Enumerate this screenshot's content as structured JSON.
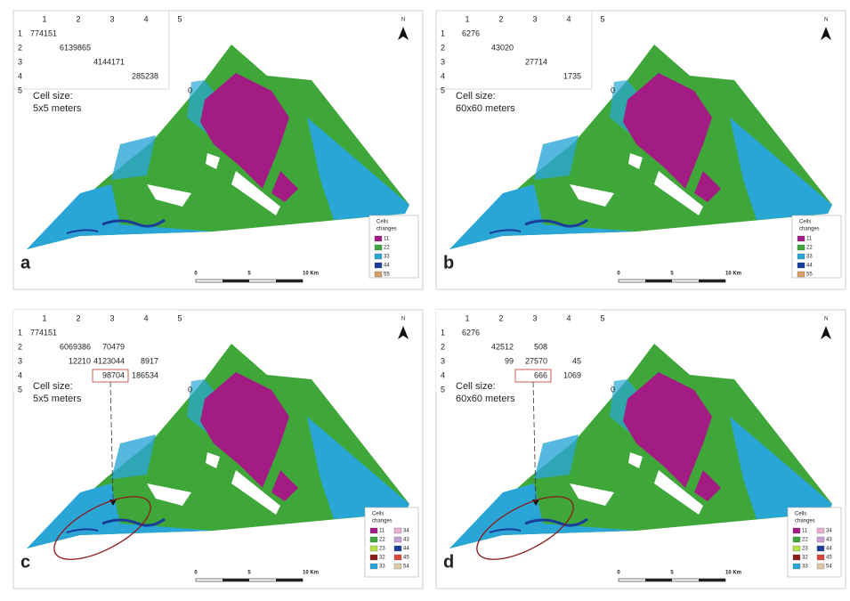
{
  "panels": [
    {
      "label": "a",
      "matrix": {
        "col_headers": [
          "1",
          "2",
          "3",
          "4",
          "5"
        ],
        "rows": [
          {
            "header": "1",
            "cells": [
              "774151",
              null,
              null,
              null,
              null
            ]
          },
          {
            "header": "2",
            "cells": [
              null,
              "6139865",
              null,
              null,
              null
            ]
          },
          {
            "header": "3",
            "cells": [
              null,
              null,
              "4144171",
              null,
              null
            ]
          },
          {
            "header": "4",
            "cells": [
              null,
              null,
              null,
              "285238",
              null
            ]
          },
          {
            "header": "5",
            "cells": [
              null,
              null,
              null,
              null,
              "0"
            ]
          }
        ]
      },
      "cell_size": [
        "Cell size:",
        "5x5 meters"
      ],
      "legend": {
        "title": [
          "Cells",
          "changes"
        ],
        "items": [
          {
            "label": "11",
            "color": "#a31c84"
          },
          {
            "label": "22",
            "color": "#3fa63a"
          },
          {
            "label": "33",
            "color": "#2aa6d6"
          },
          {
            "label": "44",
            "color": "#1a3c9a"
          },
          {
            "label": "55",
            "color": "#d9a066"
          }
        ]
      },
      "scale": [
        "0",
        "5",
        "10 Km"
      ],
      "north": "N"
    },
    {
      "label": "b",
      "matrix": {
        "col_headers": [
          "1",
          "2",
          "3",
          "4",
          "5"
        ],
        "rows": [
          {
            "header": "1",
            "cells": [
              "6276",
              null,
              null,
              null,
              null
            ]
          },
          {
            "header": "2",
            "cells": [
              null,
              "43020",
              null,
              null,
              null
            ]
          },
          {
            "header": "3",
            "cells": [
              null,
              null,
              "27714",
              null,
              null
            ]
          },
          {
            "header": "4",
            "cells": [
              null,
              null,
              null,
              "1735",
              null
            ]
          },
          {
            "header": "5",
            "cells": [
              null,
              null,
              null,
              null,
              "0"
            ]
          }
        ]
      },
      "cell_size": [
        "Cell size:",
        "60x60 meters"
      ],
      "legend": {
        "title": [
          "Cells",
          "changes"
        ],
        "items": [
          {
            "label": "11",
            "color": "#a31c84"
          },
          {
            "label": "22",
            "color": "#3fa63a"
          },
          {
            "label": "33",
            "color": "#2aa6d6"
          },
          {
            "label": "44",
            "color": "#1a3c9a"
          },
          {
            "label": "55",
            "color": "#d9a066"
          }
        ]
      },
      "scale": [
        "0",
        "5",
        "10 Km"
      ],
      "north": "N"
    },
    {
      "label": "c",
      "matrix": {
        "col_headers": [
          "1",
          "2",
          "3",
          "4",
          "5"
        ],
        "rows": [
          {
            "header": "1",
            "cells": [
              "774151",
              null,
              null,
              null,
              null
            ]
          },
          {
            "header": "2",
            "cells": [
              null,
              "6069386",
              "70479",
              null,
              null
            ]
          },
          {
            "header": "3",
            "cells": [
              null,
              "12210",
              "4123044",
              "8917",
              null
            ]
          },
          {
            "header": "4",
            "cells": [
              null,
              null,
              "98704",
              "186534",
              null
            ]
          },
          {
            "header": "5",
            "cells": [
              null,
              null,
              null,
              null,
              "0"
            ]
          }
        ]
      },
      "cell_size": [
        "Cell size:",
        "5x5 meters"
      ],
      "legend": {
        "title": [
          "Cells",
          "changes"
        ],
        "items": [
          {
            "label": "11",
            "color": "#a31c84"
          },
          {
            "label": "22",
            "color": "#3fa63a"
          },
          {
            "label": "23",
            "color": "#b7e34a"
          },
          {
            "label": "32",
            "color": "#8b1a1a"
          },
          {
            "label": "33",
            "color": "#2aa6d6"
          },
          {
            "label": "34",
            "color": "#e8b0d0"
          },
          {
            "label": "43",
            "color": "#c9a0d8"
          },
          {
            "label": "44",
            "color": "#1a3c9a"
          },
          {
            "label": "45",
            "color": "#d9463a"
          },
          {
            "label": "54",
            "color": "#e0c9a6"
          }
        ]
      },
      "scale": [
        "0",
        "5",
        "10 Km"
      ],
      "north": "N"
    },
    {
      "label": "d",
      "matrix": {
        "col_headers": [
          "1",
          "2",
          "3",
          "4",
          "5"
        ],
        "rows": [
          {
            "header": "1",
            "cells": [
              "6276",
              null,
              null,
              null,
              null
            ]
          },
          {
            "header": "2",
            "cells": [
              null,
              "42512",
              "508",
              null,
              null
            ]
          },
          {
            "header": "3",
            "cells": [
              null,
              "99",
              "27570",
              "45",
              null
            ]
          },
          {
            "header": "4",
            "cells": [
              null,
              null,
              "666",
              "1069",
              null
            ]
          },
          {
            "header": "5",
            "cells": [
              null,
              null,
              null,
              null,
              "0"
            ]
          }
        ]
      },
      "cell_size": [
        "Cell size:",
        "60x60 meters"
      ],
      "legend": {
        "title": [
          "Cells",
          "changes"
        ],
        "items": [
          {
            "label": "11",
            "color": "#a31c84"
          },
          {
            "label": "22",
            "color": "#3fa63a"
          },
          {
            "label": "23",
            "color": "#b7e34a"
          },
          {
            "label": "32",
            "color": "#8b1a1a"
          },
          {
            "label": "33",
            "color": "#2aa6d6"
          },
          {
            "label": "34",
            "color": "#e8b0d0"
          },
          {
            "label": "43",
            "color": "#c9a0d8"
          },
          {
            "label": "44",
            "color": "#1a3c9a"
          },
          {
            "label": "45",
            "color": "#d9463a"
          },
          {
            "label": "54",
            "color": "#e0c9a6"
          }
        ]
      },
      "scale": [
        "0",
        "5",
        "10 Km"
      ],
      "north": "N"
    }
  ]
}
